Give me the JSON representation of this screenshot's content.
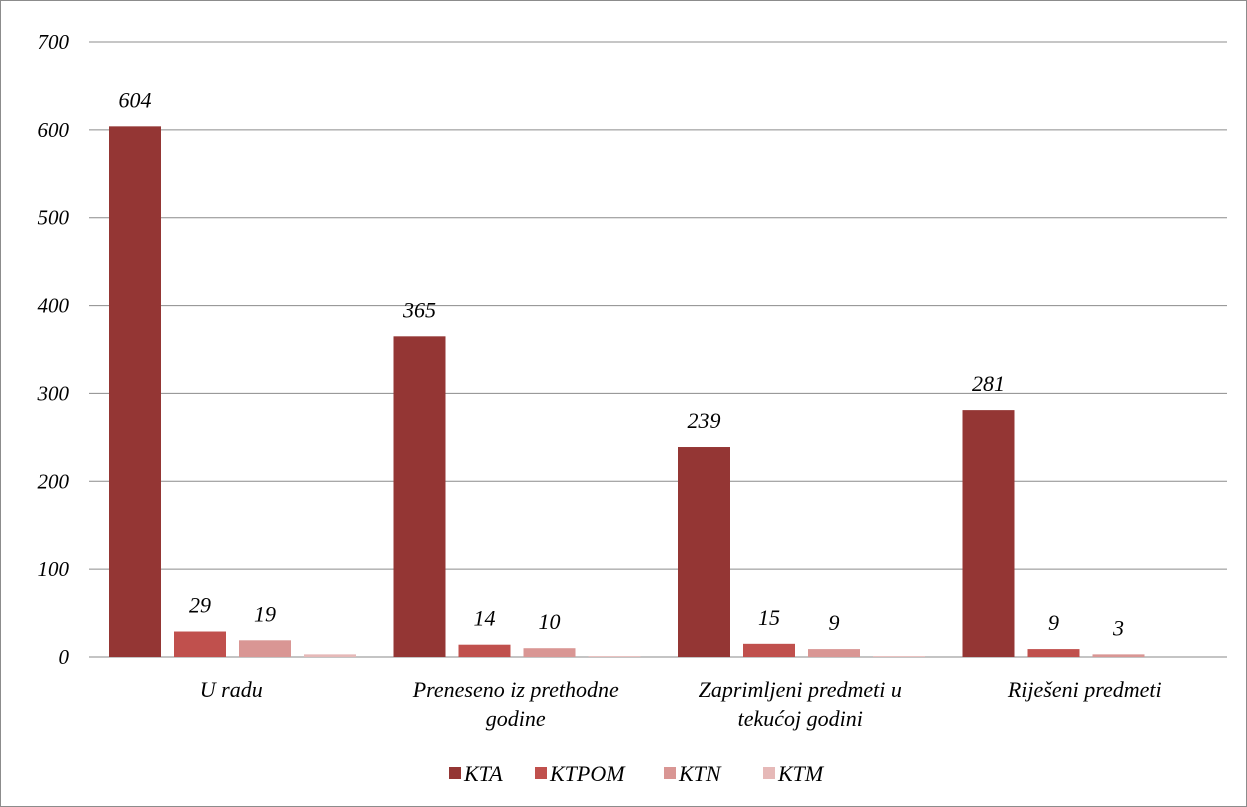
{
  "chart_data": {
    "type": "bar",
    "title": "",
    "xlabel": "",
    "ylabel": "",
    "ylim": [
      0,
      700
    ],
    "yticks": [
      0,
      100,
      200,
      300,
      400,
      500,
      600,
      700
    ],
    "grid": true,
    "legend_position": "bottom",
    "categories": [
      [
        "U radu"
      ],
      [
        "Preneseno iz prethodne",
        "godine"
      ],
      [
        "Zaprimljeni predmeti u",
        "tekućoj godini"
      ],
      [
        "Riješeni predmeti"
      ]
    ],
    "series": [
      {
        "name": "KTA",
        "color": "#943634",
        "values": [
          604,
          365,
          239,
          281
        ],
        "labels": [
          "604",
          "365",
          "239",
          "281"
        ]
      },
      {
        "name": "KTPOM",
        "color": "#c0504d",
        "values": [
          29,
          14,
          15,
          9
        ],
        "labels": [
          "29",
          "14",
          "15",
          "9"
        ]
      },
      {
        "name": "KTN",
        "color": "#d99694",
        "values": [
          19,
          10,
          9,
          3
        ],
        "labels": [
          "19",
          "10",
          "9",
          "3"
        ]
      },
      {
        "name": "KTM",
        "color": "#e6b9b8",
        "values": [
          3,
          1,
          1,
          0
        ],
        "labels": [
          "",
          "",
          "",
          ""
        ]
      }
    ]
  }
}
